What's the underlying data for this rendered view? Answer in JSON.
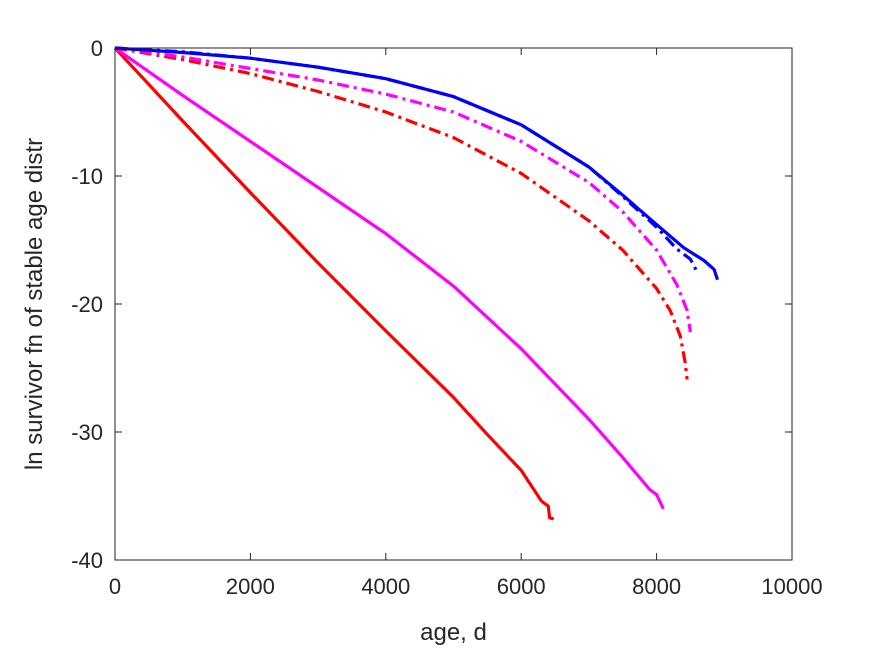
{
  "chart_data": {
    "type": "line",
    "title": "",
    "xlabel": "age, d",
    "ylabel": "ln survivor fn of stable age distr",
    "xlim": [
      0,
      10000
    ],
    "ylim": [
      -40,
      0
    ],
    "xticks": [
      0,
      2000,
      4000,
      6000,
      8000,
      10000
    ],
    "xtick_labels": [
      "0",
      "2000",
      "4000",
      "6000",
      "8000",
      "10000"
    ],
    "yticks": [
      0,
      -10,
      -20,
      -30,
      -40
    ],
    "ytick_labels": [
      "0",
      "-10",
      "-20",
      "-30",
      "-40"
    ],
    "grid": false,
    "legend": "none",
    "series": [
      {
        "color": "#ff0000",
        "style": "solid",
        "points": [
          [
            0,
            0
          ],
          [
            1000,
            -5.7
          ],
          [
            2000,
            -11.3
          ],
          [
            3000,
            -16.8
          ],
          [
            4000,
            -22.1
          ],
          [
            5000,
            -27.3
          ],
          [
            5500,
            -30.2
          ],
          [
            6000,
            -33.0
          ],
          [
            6200,
            -34.6
          ],
          [
            6300,
            -35.4
          ],
          [
            6400,
            -35.8
          ],
          [
            6420,
            -36.7
          ],
          [
            6480,
            -36.8
          ]
        ]
      },
      {
        "color": "#ff00ff",
        "style": "solid",
        "points": [
          [
            0,
            0
          ],
          [
            1000,
            -3.7
          ],
          [
            2000,
            -7.3
          ],
          [
            3000,
            -10.9
          ],
          [
            4000,
            -14.5
          ],
          [
            5000,
            -18.6
          ],
          [
            6000,
            -23.5
          ],
          [
            7000,
            -29.0
          ],
          [
            7500,
            -32.0
          ],
          [
            7900,
            -34.5
          ],
          [
            8000,
            -34.9
          ],
          [
            8100,
            -36.0
          ]
        ]
      },
      {
        "color": "#ff0000",
        "style": "dashdot",
        "points": [
          [
            0,
            0
          ],
          [
            1000,
            -0.9
          ],
          [
            2000,
            -2.0
          ],
          [
            3000,
            -3.4
          ],
          [
            4000,
            -5.0
          ],
          [
            5000,
            -7.0
          ],
          [
            6000,
            -9.8
          ],
          [
            7000,
            -13.5
          ],
          [
            7500,
            -15.8
          ],
          [
            8000,
            -18.8
          ],
          [
            8200,
            -20.5
          ],
          [
            8350,
            -22.5
          ],
          [
            8420,
            -24.5
          ],
          [
            8450,
            -25.9
          ]
        ]
      },
      {
        "color": "#ff00ff",
        "style": "dashdot",
        "points": [
          [
            0,
            0
          ],
          [
            1000,
            -0.7
          ],
          [
            2000,
            -1.6
          ],
          [
            3000,
            -2.5
          ],
          [
            4000,
            -3.6
          ],
          [
            5000,
            -5.0
          ],
          [
            6000,
            -7.3
          ],
          [
            7000,
            -10.5
          ],
          [
            7500,
            -12.8
          ],
          [
            8000,
            -15.8
          ],
          [
            8300,
            -18.5
          ],
          [
            8450,
            -20.5
          ],
          [
            8500,
            -22.2
          ]
        ]
      },
      {
        "color": "#0000ff",
        "style": "dashdot",
        "points": [
          [
            0,
            0
          ],
          [
            1000,
            -0.3
          ],
          [
            2000,
            -0.8
          ],
          [
            3000,
            -1.5
          ],
          [
            4000,
            -2.4
          ],
          [
            5000,
            -3.8
          ],
          [
            6000,
            -6.0
          ],
          [
            7000,
            -9.3
          ],
          [
            7500,
            -11.6
          ],
          [
            8000,
            -14.0
          ],
          [
            8300,
            -15.7
          ],
          [
            8500,
            -16.5
          ],
          [
            8600,
            -17.5
          ]
        ]
      },
      {
        "color": "#0000ff",
        "style": "solid",
        "points": [
          [
            0,
            0
          ],
          [
            1000,
            -0.35
          ],
          [
            2000,
            -0.8
          ],
          [
            3000,
            -1.5
          ],
          [
            4000,
            -2.4
          ],
          [
            5000,
            -3.8
          ],
          [
            6000,
            -6.0
          ],
          [
            7000,
            -9.3
          ],
          [
            7500,
            -11.5
          ],
          [
            8000,
            -13.8
          ],
          [
            8400,
            -15.6
          ],
          [
            8700,
            -16.6
          ],
          [
            8850,
            -17.3
          ],
          [
            8900,
            -18.1
          ]
        ]
      }
    ]
  }
}
